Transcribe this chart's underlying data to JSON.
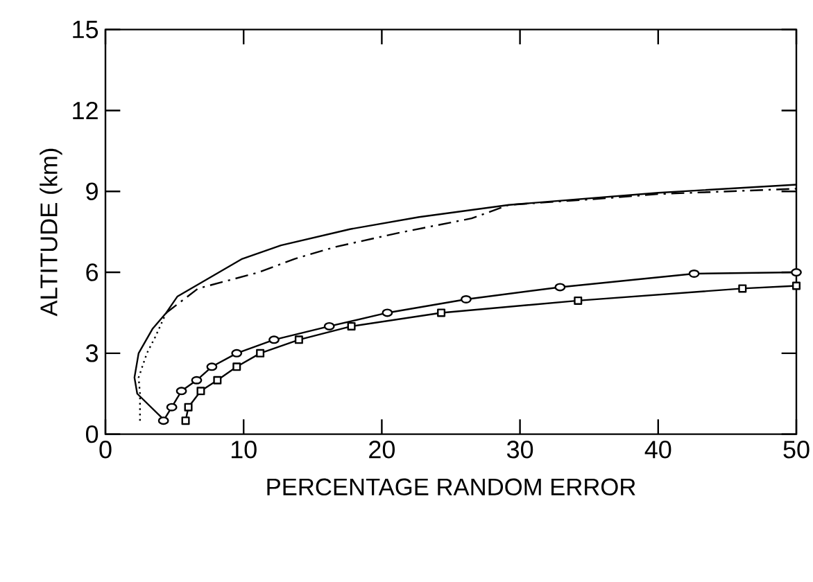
{
  "chart_data": {
    "type": "line",
    "xlabel": "PERCENTAGE RANDOM ERROR",
    "ylabel": "ALTITUDE (km)",
    "xlim": [
      0,
      50
    ],
    "ylim": [
      0,
      15
    ],
    "xticks": [
      0,
      10,
      20,
      30,
      40,
      50
    ],
    "yticks": [
      0,
      3,
      6,
      9,
      12,
      15
    ],
    "grid": false,
    "series": [
      {
        "color": "#000000",
        "line_style": "solid",
        "marker": "none",
        "x": [
          4.3,
          2.3,
          2.1,
          2.4,
          3.4,
          4.4,
          5.2,
          9.9,
          12.7,
          17.7,
          22.7,
          29.2,
          40,
          50
        ],
        "values": [
          0.5,
          1.5,
          2.1,
          3.0,
          3.9,
          4.5,
          5.1,
          6.5,
          7.0,
          7.6,
          8.05,
          8.5,
          8.95,
          9.25
        ]
      },
      {
        "color": "#000000",
        "line_style": "dotted",
        "marker": "none",
        "x": [
          2.5,
          2.5,
          2.4,
          3.0,
          3.6,
          4.4
        ],
        "values": [
          0.5,
          1.5,
          2.1,
          3.0,
          3.6,
          4.5
        ]
      },
      {
        "color": "#000000",
        "line_style": "dashed",
        "marker": "none",
        "x": [
          4.4,
          6.7,
          11.1,
          13.7,
          16.7,
          21.1,
          26.5,
          29.2,
          35,
          40,
          50
        ],
        "values": [
          4.5,
          5.4,
          6.0,
          6.5,
          6.95,
          7.45,
          8.0,
          8.5,
          8.7,
          8.9,
          9.1
        ]
      },
      {
        "color": "#000000",
        "line_style": "solid",
        "marker": "circle",
        "x": [
          4.2,
          4.8,
          5.5,
          6.6,
          7.7,
          9.5,
          12.2,
          16.2,
          20.4,
          26.1,
          32.9,
          42.6,
          50
        ],
        "values": [
          0.5,
          1.0,
          1.6,
          2.0,
          2.5,
          3.0,
          3.5,
          4.0,
          4.5,
          5.0,
          5.45,
          5.95,
          6.0
        ]
      },
      {
        "color": "#000000",
        "line_style": "solid",
        "marker": "square",
        "x": [
          5.8,
          6.0,
          6.9,
          8.1,
          9.5,
          11.2,
          14.0,
          17.8,
          24.3,
          34.2,
          46.1,
          50
        ],
        "values": [
          0.5,
          1.0,
          1.6,
          2.0,
          2.5,
          3.0,
          3.5,
          4.0,
          4.5,
          4.95,
          5.4,
          5.5
        ]
      }
    ]
  }
}
